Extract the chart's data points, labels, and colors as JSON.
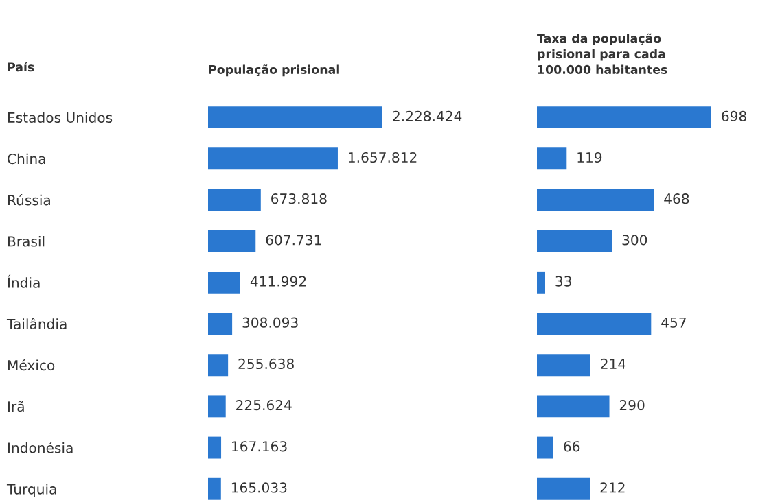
{
  "chart_data": [
    {
      "type": "bar",
      "orientation": "horizontal",
      "title": "População prisional",
      "ylabel": "País",
      "categories": [
        "Estados Unidos",
        "China",
        "Rússia",
        "Brasil",
        "Índia",
        "Tailândia",
        "México",
        "Irã",
        "Indonésia",
        "Turquia"
      ],
      "values": [
        2228424,
        1657812,
        673818,
        607731,
        411992,
        308093,
        255638,
        225624,
        167163,
        165033
      ],
      "value_labels": [
        "2.228.424",
        "1.657.812",
        "673.818",
        "607.731",
        "411.992",
        "308.093",
        "255.638",
        "225.624",
        "167.163",
        "165.033"
      ],
      "color": "#2a78d0",
      "xlim": [
        0,
        2228424
      ],
      "grid": false,
      "legend": false
    },
    {
      "type": "bar",
      "orientation": "horizontal",
      "title": "Taxa da população\nprisional para cada\n100.000 habitantes",
      "categories": [
        null,
        null,
        null,
        null,
        null,
        null,
        null,
        null,
        null,
        null
      ],
      "values": [
        698,
        119,
        468,
        300,
        33,
        457,
        214,
        290,
        66,
        212
      ],
      "data_labels": true,
      "color": "#2a78d0",
      "xlim": [
        0,
        698
      ],
      "grid": false,
      "legend": false
    }
  ]
}
